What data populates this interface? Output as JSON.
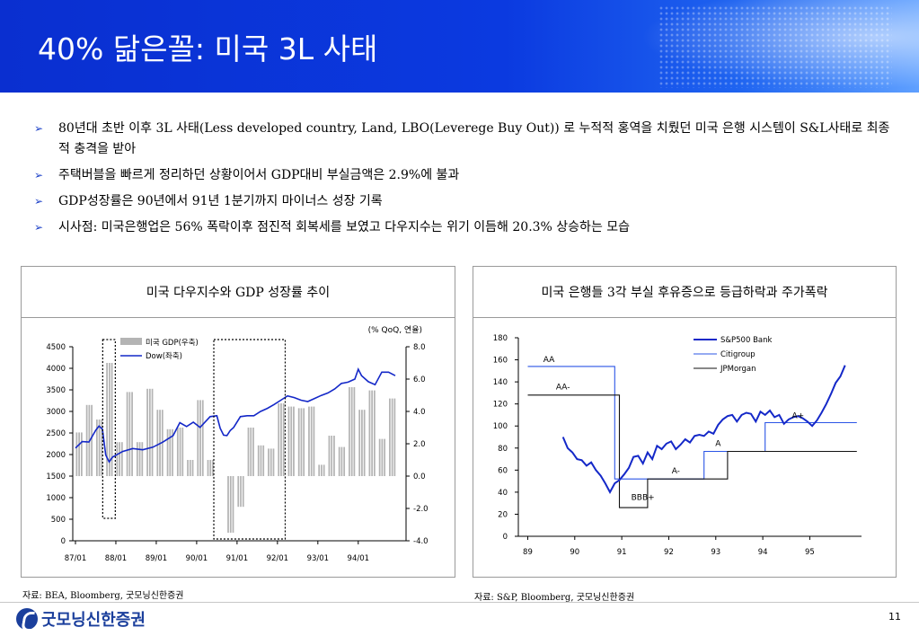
{
  "slide": {
    "title": "40% 닮은꼴: 미국 3L 사태",
    "page_number": "11",
    "logo_text": "굿모닝신한증권"
  },
  "bullets": [
    "80년대 초반 이후 3L 사태(Less developed country, Land, LBO(Leverege Buy Out)) 로 누적적 홍역을 치뤘던 미국 은행 시스템이 S&L사태로 최종적 충격을 받아",
    "주택버블을 빠르게 정리하던 상황이어서 GDP대비 부실금액은 2.9%에 불과",
    "GDP성장률은 90년에서 91년 1분기까지 마이너스 성장 기록",
    "시사점: 미국은행업은 56% 폭락이후 점진적 회복세를 보였고 다우지수는 위기 이듬해 20.3% 상승하는 모습"
  ],
  "bullet_marker": "➢",
  "panels": {
    "left": {
      "title": "미국 다우지수와 GDP 성장률 추이",
      "source": "자료: BEA, Bloomberg, 굿모닝신한증권"
    },
    "right": {
      "title": "미국 은행들 3각 부실 후유증으로 등급하락과 주가폭락",
      "source": "자료: S&P, Bloomberg, 굿모닝신한증권"
    }
  },
  "colors": {
    "accent": "#1a3fc7",
    "header_blue": "#0b3ae0",
    "bar_gray": "#b4b4b4",
    "dow_blue": "#1428c8"
  },
  "chart_data": [
    {
      "type": "bar+line",
      "unit_note": "(% QoQ, 연율)",
      "x_ticks": [
        "87/01",
        "88/01",
        "89/01",
        "90/01",
        "91/01",
        "92/01",
        "93/01",
        "94/01"
      ],
      "y_left": {
        "ticks": [
          0,
          500,
          1000,
          1500,
          2000,
          2500,
          3000,
          3500,
          4000,
          4500
        ],
        "range": [
          0,
          4500
        ]
      },
      "y_right": {
        "ticks": [
          "8.0",
          "6.0",
          "4.0",
          "2.0",
          "0.0",
          "-2.0",
          "-4.0"
        ],
        "range": [
          -4,
          8
        ]
      },
      "legend": [
        "미국 GDP(우축)",
        "Dow(좌축)"
      ],
      "series": [
        {
          "name": "미국 GDP(우축)",
          "axis": "right",
          "kind": "bar",
          "quarters": [
            "87Q1",
            "87Q2",
            "87Q3",
            "87Q4",
            "88Q1",
            "88Q2",
            "88Q3",
            "88Q4",
            "89Q1",
            "89Q2",
            "89Q3",
            "89Q4",
            "90Q1",
            "90Q2",
            "90Q3",
            "90Q4",
            "91Q1",
            "91Q2",
            "91Q3",
            "91Q4",
            "92Q1",
            "92Q2",
            "92Q3",
            "92Q4",
            "93Q1",
            "93Q2",
            "93Q3",
            "93Q4",
            "94Q1",
            "94Q2",
            "94Q3",
            "94Q4"
          ],
          "values": [
            2.7,
            4.4,
            3.5,
            7.0,
            2.1,
            5.2,
            2.1,
            5.4,
            4.1,
            2.9,
            3.0,
            1.0,
            4.7,
            1.0,
            0.0,
            -3.5,
            -1.9,
            3.0,
            1.9,
            1.7,
            4.5,
            4.3,
            4.2,
            4.3,
            0.7,
            2.5,
            1.8,
            5.5,
            4.1,
            5.3,
            2.3,
            4.8
          ]
        },
        {
          "name": "Dow(좌축)",
          "axis": "left",
          "kind": "line",
          "months": [
            "87/01",
            "87/03",
            "87/05",
            "87/07",
            "87/08",
            "87/09",
            "87/10",
            "87/11",
            "87/12",
            "88/03",
            "88/06",
            "88/09",
            "88/12",
            "89/03",
            "89/06",
            "89/08",
            "89/10",
            "89/12",
            "90/02",
            "90/05",
            "90/07",
            "90/08",
            "90/09",
            "90/10",
            "90/11",
            "90/12",
            "91/02",
            "91/04",
            "91/06",
            "91/08",
            "91/10",
            "91/12",
            "92/02",
            "92/04",
            "92/06",
            "92/08",
            "92/10",
            "92/12",
            "93/02",
            "93/04",
            "93/06",
            "93/08",
            "93/10",
            "93/12",
            "94/01",
            "94/02",
            "94/04",
            "94/06",
            "94/08",
            "94/10",
            "94/12"
          ],
          "values": [
            2150,
            2300,
            2290,
            2560,
            2660,
            2590,
            1990,
            1830,
            1940,
            2070,
            2140,
            2110,
            2170,
            2290,
            2440,
            2740,
            2650,
            2750,
            2630,
            2880,
            2900,
            2610,
            2450,
            2440,
            2560,
            2630,
            2880,
            2900,
            2900,
            3000,
            3070,
            3160,
            3260,
            3360,
            3320,
            3260,
            3230,
            3300,
            3370,
            3430,
            3520,
            3650,
            3680,
            3750,
            3980,
            3830,
            3690,
            3620,
            3910,
            3910,
            3830
          ]
        }
      ]
    },
    {
      "type": "line",
      "x_ticks": [
        "89",
        "90",
        "91",
        "92",
        "93",
        "94",
        "95"
      ],
      "y_ticks": [
        0,
        20,
        40,
        60,
        80,
        100,
        120,
        140,
        160,
        180
      ],
      "ylim": [
        0,
        180
      ],
      "legend": [
        "S&P500 Bank",
        "Citigroup",
        "JPMorgan"
      ],
      "annotations": [
        "AA",
        "AA-",
        "BBB+",
        "A-",
        "A",
        "A+"
      ],
      "series": [
        {
          "name": "S&P500 Bank",
          "x": [
            89.65,
            89.75,
            89.85,
            89.95,
            90.05,
            90.15,
            90.25,
            90.35,
            90.45,
            90.55,
            90.65,
            90.75,
            90.85,
            90.95,
            91.05,
            91.15,
            91.25,
            91.35,
            91.45,
            91.55,
            91.65,
            91.75,
            91.85,
            91.95,
            92.05,
            92.15,
            92.25,
            92.35,
            92.45,
            92.55,
            92.65,
            92.75,
            92.85,
            92.95,
            93.05,
            93.15,
            93.25,
            93.35,
            93.45,
            93.55,
            93.65,
            93.75,
            93.85,
            93.95,
            94.05,
            94.15,
            94.25,
            94.35,
            94.45,
            94.55,
            94.65,
            94.75,
            94.85,
            94.95,
            95.05,
            95.15,
            95.25,
            95.35,
            95.45,
            95.55,
            95.65
          ],
          "values": [
            90,
            80,
            76,
            70,
            69,
            64,
            67,
            60,
            55,
            48,
            40,
            48,
            51,
            56,
            62,
            72,
            73,
            66,
            76,
            70,
            82,
            79,
            84,
            86,
            79,
            83,
            88,
            85,
            91,
            92,
            91,
            95,
            93,
            101,
            106,
            109,
            110,
            104,
            110,
            112,
            111,
            104,
            113,
            110,
            114,
            108,
            110,
            102,
            106,
            108,
            109,
            107,
            104,
            100,
            105,
            112,
            120,
            129,
            139,
            145,
            155
          ]
        },
        {
          "name": "Citigroup",
          "segments": [
            [
              88.9,
              154
            ],
            [
              90.75,
              154
            ],
            [
              90.75,
              52
            ],
            [
              91.75,
              52
            ],
            [
              91.75,
              52
            ],
            [
              92.65,
              52
            ],
            [
              92.65,
              77
            ],
            [
              93.5,
              77
            ],
            [
              93.5,
              77
            ],
            [
              93.95,
              77
            ],
            [
              93.95,
              103
            ],
            [
              95.9,
              103
            ]
          ]
        },
        {
          "name": "JPMorgan",
          "segments": [
            [
              88.9,
              128
            ],
            [
              90.85,
              128
            ],
            [
              90.85,
              26
            ],
            [
              91.45,
              26
            ],
            [
              91.45,
              52
            ],
            [
              93.15,
              52
            ],
            [
              93.15,
              77
            ],
            [
              95.9,
              77
            ]
          ]
        }
      ]
    }
  ]
}
